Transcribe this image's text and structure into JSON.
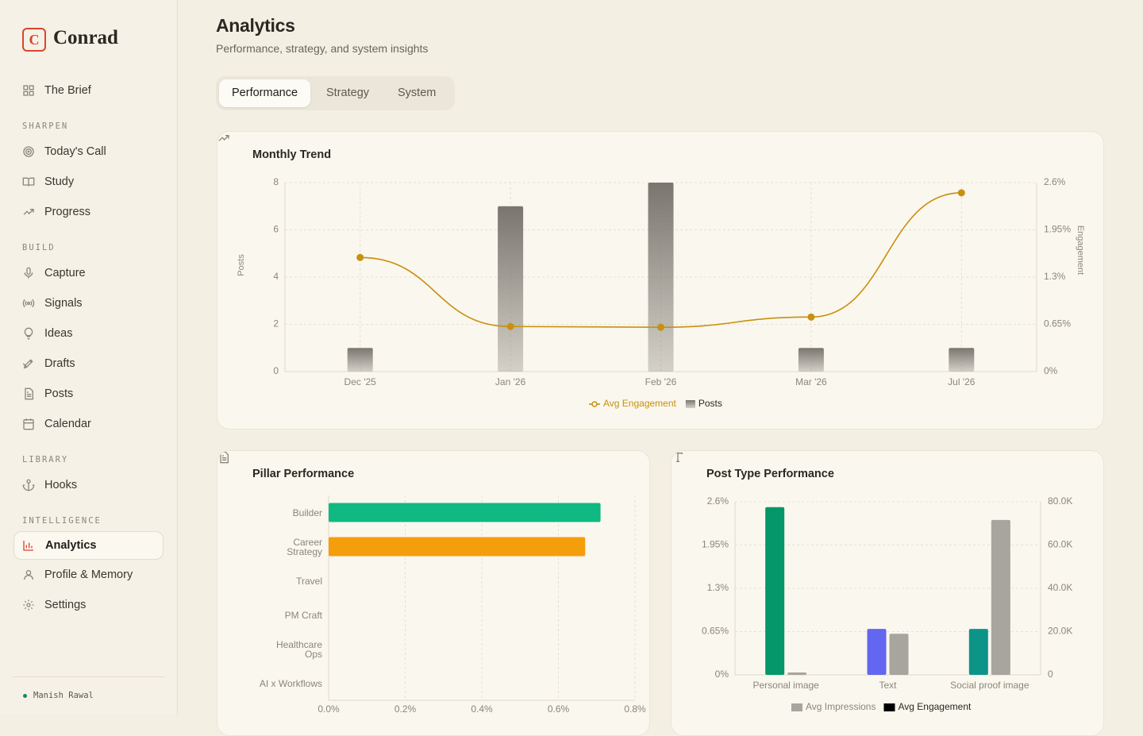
{
  "sidebar": {
    "logo": "C",
    "brand": "Conrad",
    "sections": [
      {
        "items": [
          {
            "label": "The Brief"
          }
        ]
      },
      {
        "label": "SHARPEN",
        "items": [
          {
            "label": "Today's Call"
          },
          {
            "label": "Study"
          },
          {
            "label": "Progress"
          }
        ]
      },
      {
        "label": "BUILD",
        "items": [
          {
            "label": "Capture"
          },
          {
            "label": "Signals"
          },
          {
            "label": "Ideas"
          },
          {
            "label": "Drafts"
          },
          {
            "label": "Posts"
          },
          {
            "label": "Calendar"
          }
        ]
      },
      {
        "label": "LIBRARY",
        "items": [
          {
            "label": "Hooks"
          }
        ]
      },
      {
        "label": "INTELLIGENCE",
        "items": [
          {
            "label": "Analytics",
            "active": true
          },
          {
            "label": "Profile & Memory"
          },
          {
            "label": "Settings"
          }
        ]
      }
    ],
    "user": "Manish Rawal"
  },
  "header": {
    "title": "Analytics",
    "subtitle": "Performance, strategy, and system insights"
  },
  "tabs": [
    {
      "label": "Performance",
      "active": true
    },
    {
      "label": "Strategy"
    },
    {
      "label": "System"
    }
  ],
  "chart_data": [
    {
      "type": "combo",
      "title": "Monthly Trend",
      "categories": [
        "Dec '25",
        "Jan '26",
        "Feb '26",
        "Mar '26",
        "Jul '26"
      ],
      "series": [
        {
          "name": "Avg Engagement",
          "type": "line",
          "axis": "y2",
          "color": "#c8900f",
          "values": [
            1.57,
            0.62,
            0.61,
            0.75,
            2.46
          ]
        },
        {
          "name": "Posts",
          "type": "bar",
          "color": "#7a766f",
          "values": [
            1,
            7,
            8,
            1,
            1
          ]
        }
      ],
      "ylabel": "Posts",
      "y2label": "Engagement",
      "ylim": [
        0,
        8
      ],
      "yticks": [
        0,
        2,
        4,
        6,
        8
      ],
      "y2lim": [
        0,
        2.6
      ],
      "y2ticks": [
        {
          "value": 0,
          "label": "0%"
        },
        {
          "value": 0.65,
          "label": "0.65%"
        },
        {
          "value": 1.3,
          "label": "1.3%"
        },
        {
          "value": 1.95,
          "label": "1.95%"
        },
        {
          "value": 2.6,
          "label": "2.6%"
        }
      ],
      "grid": true,
      "legend": "bottom"
    },
    {
      "type": "barh",
      "title": "Pillar Performance",
      "categories": [
        "Builder",
        "Career Strategy",
        "Travel",
        "PM Craft",
        "Healthcare Ops",
        "AI x Workflows"
      ],
      "values": [
        0.71,
        0.67,
        0,
        0,
        0,
        0
      ],
      "colors": [
        "#10b981",
        "#f59e0b"
      ],
      "xlim": [
        0,
        0.8
      ],
      "xticks": [
        {
          "value": 0,
          "label": "0.0%"
        },
        {
          "value": 0.2,
          "label": "0.2%"
        },
        {
          "value": 0.4,
          "label": "0.4%"
        },
        {
          "value": 0.6,
          "label": "0.6%"
        },
        {
          "value": 0.8,
          "label": "0.8%"
        }
      ],
      "grid": true
    },
    {
      "type": "bar",
      "title": "Post Type Performance",
      "categories": [
        "Personal image",
        "Text",
        "Social proof image"
      ],
      "series": [
        {
          "name": "Avg Impressions",
          "axis": "y2",
          "color": "#a8a49e",
          "values": [
            1100,
            19000,
            71600
          ]
        },
        {
          "name": "Avg Engagement",
          "color": "#000000",
          "colors": [
            "#059669",
            "#6366f1",
            "#0d9488"
          ],
          "values": [
            2.52,
            0.69,
            0.69
          ]
        }
      ],
      "ylim": [
        0,
        2.6
      ],
      "yticks": [
        {
          "value": 0,
          "label": "0%"
        },
        {
          "value": 0.65,
          "label": "0.65%"
        },
        {
          "value": 1.3,
          "label": "1.3%"
        },
        {
          "value": 1.95,
          "label": "1.95%"
        },
        {
          "value": 2.6,
          "label": "2.6%"
        }
      ],
      "y2lim": [
        0,
        80000
      ],
      "y2ticks": [
        0,
        {
          "value": 20000,
          "label": "20.0K"
        },
        {
          "value": 40000,
          "label": "40.0K"
        },
        {
          "value": 60000,
          "label": "60.0K"
        },
        {
          "value": 80000,
          "label": "80.0K"
        }
      ],
      "grid": true,
      "legend": "bottom"
    }
  ]
}
